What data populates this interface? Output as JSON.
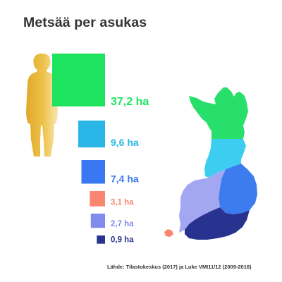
{
  "title": "Metsää per asukas",
  "source": "Lähde: Tilastokeskus (2017) ja Luke VMI11/12 (2009-2016)",
  "chart_data": {
    "type": "bar",
    "encoding": "square area proportional to value",
    "unit": "ha",
    "categories": [
      "37,2 ha",
      "9,6 ha",
      "7,4 ha",
      "3,1 ha",
      "2,7 ha",
      "0,9 ha"
    ],
    "values": [
      37.2,
      9.6,
      7.4,
      3.1,
      2.7,
      0.9
    ],
    "colors": [
      "#1ee35f",
      "#2bb6e8",
      "#3a78f2",
      "#fa8672",
      "#7f8cec",
      "#28358f"
    ]
  },
  "map": {
    "region_colors": [
      "#27df6a",
      "#3ccdf0",
      "#3d7cef",
      "#a3a6f1",
      "#27338f",
      "#f9876f"
    ]
  },
  "person": {
    "icon": "person-silhouette-icon",
    "color": "#e8b830"
  }
}
